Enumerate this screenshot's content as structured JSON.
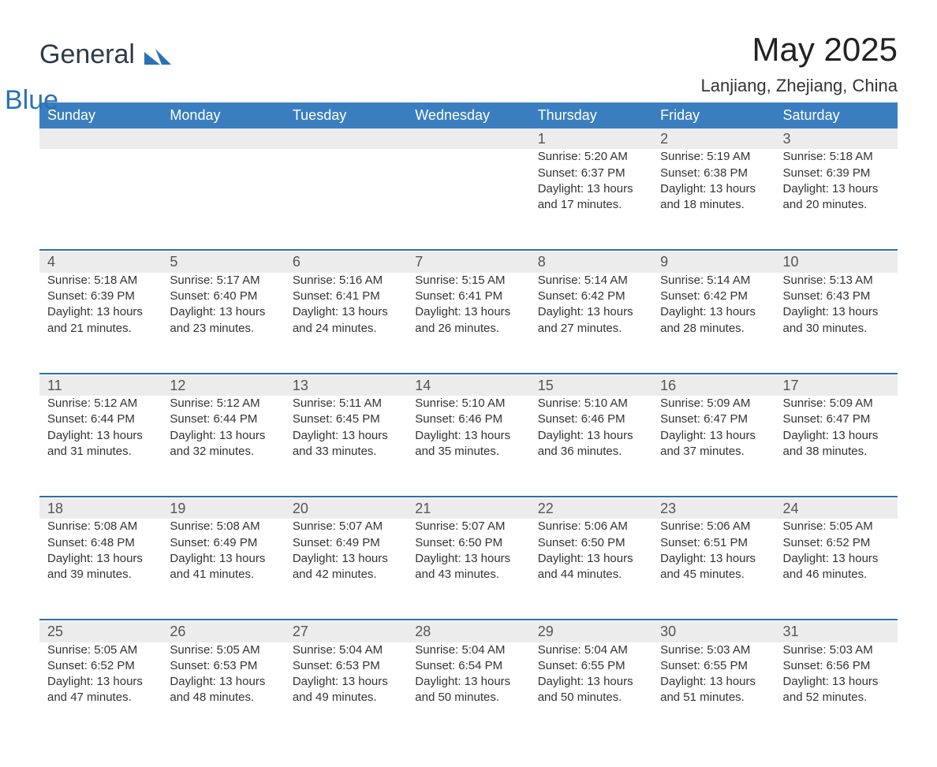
{
  "logo": {
    "text_general": "General",
    "text_blue": "Blue"
  },
  "title": "May 2025",
  "location": "Lanjiang, Zhejiang, China",
  "colors": {
    "header_blue": "#3b7ebf",
    "accent_blue": "#2f6fa8",
    "row_grey": "#ececec",
    "logo_blue": "#2b72b5",
    "logo_dark": "#2e3a46",
    "background": "#ffffff",
    "text": "#333333"
  },
  "day_headers": [
    "Sunday",
    "Monday",
    "Tuesday",
    "Wednesday",
    "Thursday",
    "Friday",
    "Saturday"
  ],
  "leading_blank_days": 4,
  "days": [
    {
      "n": 1,
      "sunrise": "5:20 AM",
      "sunset": "6:37 PM",
      "daylight": "13 hours and 17 minutes."
    },
    {
      "n": 2,
      "sunrise": "5:19 AM",
      "sunset": "6:38 PM",
      "daylight": "13 hours and 18 minutes."
    },
    {
      "n": 3,
      "sunrise": "5:18 AM",
      "sunset": "6:39 PM",
      "daylight": "13 hours and 20 minutes."
    },
    {
      "n": 4,
      "sunrise": "5:18 AM",
      "sunset": "6:39 PM",
      "daylight": "13 hours and 21 minutes."
    },
    {
      "n": 5,
      "sunrise": "5:17 AM",
      "sunset": "6:40 PM",
      "daylight": "13 hours and 23 minutes."
    },
    {
      "n": 6,
      "sunrise": "5:16 AM",
      "sunset": "6:41 PM",
      "daylight": "13 hours and 24 minutes."
    },
    {
      "n": 7,
      "sunrise": "5:15 AM",
      "sunset": "6:41 PM",
      "daylight": "13 hours and 26 minutes."
    },
    {
      "n": 8,
      "sunrise": "5:14 AM",
      "sunset": "6:42 PM",
      "daylight": "13 hours and 27 minutes."
    },
    {
      "n": 9,
      "sunrise": "5:14 AM",
      "sunset": "6:42 PM",
      "daylight": "13 hours and 28 minutes."
    },
    {
      "n": 10,
      "sunrise": "5:13 AM",
      "sunset": "6:43 PM",
      "daylight": "13 hours and 30 minutes."
    },
    {
      "n": 11,
      "sunrise": "5:12 AM",
      "sunset": "6:44 PM",
      "daylight": "13 hours and 31 minutes."
    },
    {
      "n": 12,
      "sunrise": "5:12 AM",
      "sunset": "6:44 PM",
      "daylight": "13 hours and 32 minutes."
    },
    {
      "n": 13,
      "sunrise": "5:11 AM",
      "sunset": "6:45 PM",
      "daylight": "13 hours and 33 minutes."
    },
    {
      "n": 14,
      "sunrise": "5:10 AM",
      "sunset": "6:46 PM",
      "daylight": "13 hours and 35 minutes."
    },
    {
      "n": 15,
      "sunrise": "5:10 AM",
      "sunset": "6:46 PM",
      "daylight": "13 hours and 36 minutes."
    },
    {
      "n": 16,
      "sunrise": "5:09 AM",
      "sunset": "6:47 PM",
      "daylight": "13 hours and 37 minutes."
    },
    {
      "n": 17,
      "sunrise": "5:09 AM",
      "sunset": "6:47 PM",
      "daylight": "13 hours and 38 minutes."
    },
    {
      "n": 18,
      "sunrise": "5:08 AM",
      "sunset": "6:48 PM",
      "daylight": "13 hours and 39 minutes."
    },
    {
      "n": 19,
      "sunrise": "5:08 AM",
      "sunset": "6:49 PM",
      "daylight": "13 hours and 41 minutes."
    },
    {
      "n": 20,
      "sunrise": "5:07 AM",
      "sunset": "6:49 PM",
      "daylight": "13 hours and 42 minutes."
    },
    {
      "n": 21,
      "sunrise": "5:07 AM",
      "sunset": "6:50 PM",
      "daylight": "13 hours and 43 minutes."
    },
    {
      "n": 22,
      "sunrise": "5:06 AM",
      "sunset": "6:50 PM",
      "daylight": "13 hours and 44 minutes."
    },
    {
      "n": 23,
      "sunrise": "5:06 AM",
      "sunset": "6:51 PM",
      "daylight": "13 hours and 45 minutes."
    },
    {
      "n": 24,
      "sunrise": "5:05 AM",
      "sunset": "6:52 PM",
      "daylight": "13 hours and 46 minutes."
    },
    {
      "n": 25,
      "sunrise": "5:05 AM",
      "sunset": "6:52 PM",
      "daylight": "13 hours and 47 minutes."
    },
    {
      "n": 26,
      "sunrise": "5:05 AM",
      "sunset": "6:53 PM",
      "daylight": "13 hours and 48 minutes."
    },
    {
      "n": 27,
      "sunrise": "5:04 AM",
      "sunset": "6:53 PM",
      "daylight": "13 hours and 49 minutes."
    },
    {
      "n": 28,
      "sunrise": "5:04 AM",
      "sunset": "6:54 PM",
      "daylight": "13 hours and 50 minutes."
    },
    {
      "n": 29,
      "sunrise": "5:04 AM",
      "sunset": "6:55 PM",
      "daylight": "13 hours and 50 minutes."
    },
    {
      "n": 30,
      "sunrise": "5:03 AM",
      "sunset": "6:55 PM",
      "daylight": "13 hours and 51 minutes."
    },
    {
      "n": 31,
      "sunrise": "5:03 AM",
      "sunset": "6:56 PM",
      "daylight": "13 hours and 52 minutes."
    }
  ],
  "labels": {
    "sunrise_prefix": "Sunrise: ",
    "sunset_prefix": "Sunset: ",
    "daylight_prefix": "Daylight: "
  }
}
